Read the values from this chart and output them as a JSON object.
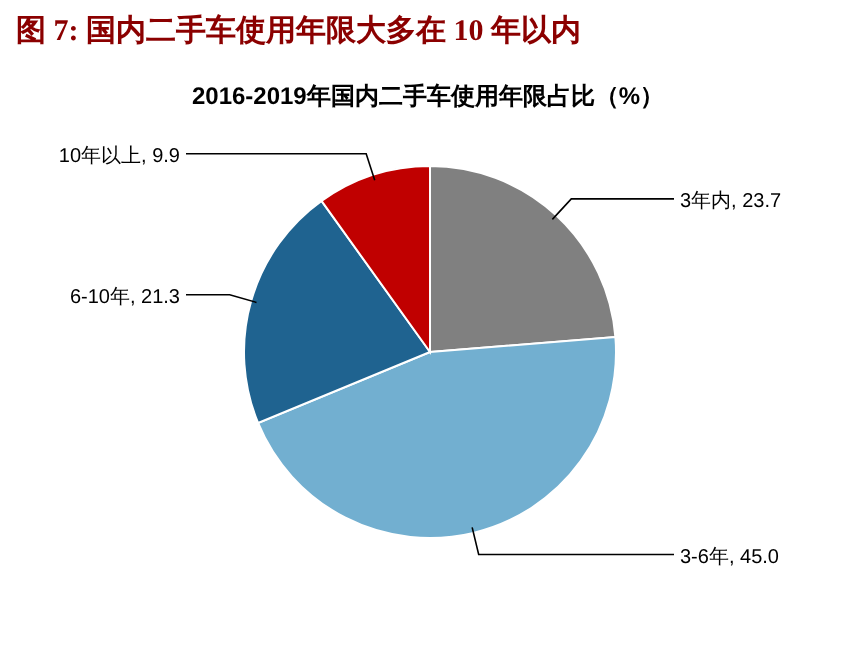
{
  "chart_data": {
    "type": "pie",
    "title": "图 7: 国内二手车使用年限大多在 10 年以内",
    "subtitle": "2016-2019年国内二手车使用年限占比（%）",
    "categories": [
      "3年内",
      "3-6年",
      "6-10年",
      "10年以上"
    ],
    "values": [
      23.7,
      45.0,
      21.3,
      9.9
    ],
    "value_labels": [
      "23.7",
      "45.0",
      "21.3",
      "9.9"
    ],
    "colors": [
      "#808080",
      "#72afd0",
      "#1f6390",
      "#c00000"
    ]
  }
}
